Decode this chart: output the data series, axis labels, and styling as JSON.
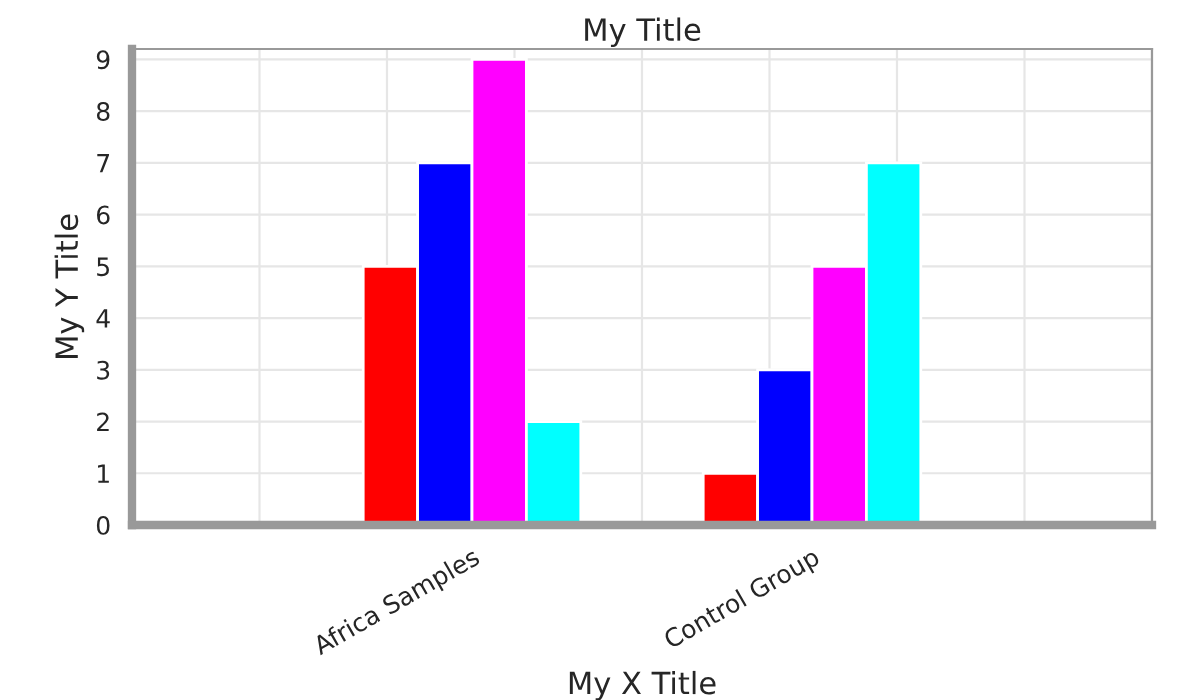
{
  "chart_data": {
    "type": "bar",
    "title": "My Title",
    "xlabel": "My X Title",
    "ylabel": "My Y Title",
    "categories": [
      "Africa Samples",
      "Control Group"
    ],
    "series": [
      {
        "color": "#ff0000",
        "values": [
          5,
          1
        ]
      },
      {
        "color": "#0000ff",
        "values": [
          7,
          3
        ]
      },
      {
        "color": "#ff00ff",
        "values": [
          9,
          5
        ]
      },
      {
        "color": "#00ffff",
        "values": [
          2,
          7
        ]
      }
    ],
    "ylim": [
      0,
      9.2
    ],
    "yticks": [
      0,
      1,
      2,
      3,
      4,
      5,
      6,
      7,
      8,
      9
    ],
    "grid": true,
    "legend": false
  }
}
